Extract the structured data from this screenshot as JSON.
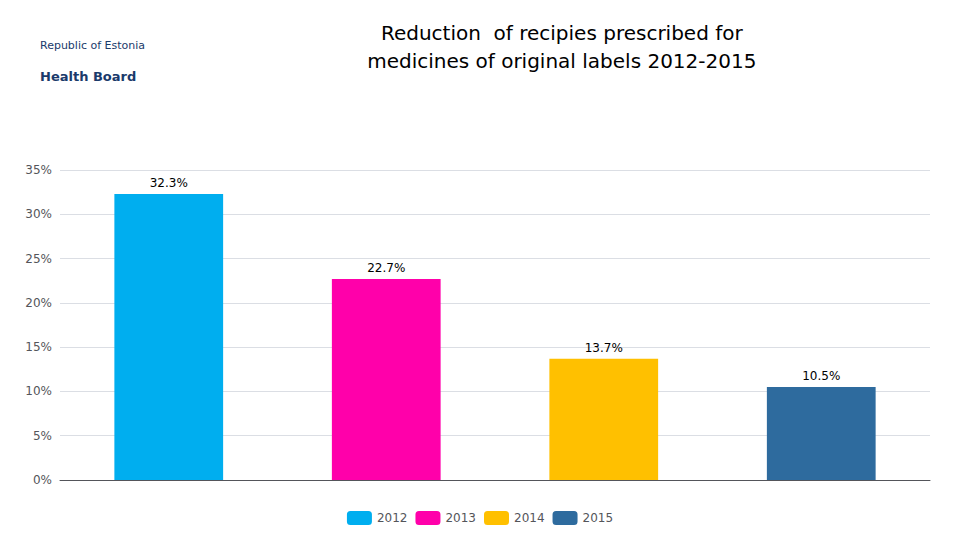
{
  "chart_data": {
    "type": "bar",
    "title": "Reduction  of recipies prescribed for\nmedicines of original labels 2012-2015",
    "categories": [
      "2012",
      "2013",
      "2014",
      "2015"
    ],
    "values": [
      32.3,
      22.7,
      13.7,
      10.5
    ],
    "value_labels": [
      "32.3%",
      "22.7%",
      "13.7%",
      "10.5%"
    ],
    "colors": [
      "#00AEEF",
      "#FF00AA",
      "#FFC000",
      "#2E6B9E"
    ],
    "data_labels": true,
    "ylim": [
      0,
      35
    ],
    "yticks": [
      {
        "value": 0,
        "label": "0%"
      },
      {
        "value": 5,
        "label": "5%"
      },
      {
        "value": 10,
        "label": "10%"
      },
      {
        "value": 15,
        "label": "15%"
      },
      {
        "value": 20,
        "label": "20%"
      },
      {
        "value": 25,
        "label": "25%"
      },
      {
        "value": 30,
        "label": "30%"
      },
      {
        "value": 35,
        "label": "35%"
      }
    ],
    "grid": true,
    "legend": "bottom",
    "tick_labels": "y",
    "annotations": [
      "Republic of Estonia",
      "Health Board"
    ]
  }
}
